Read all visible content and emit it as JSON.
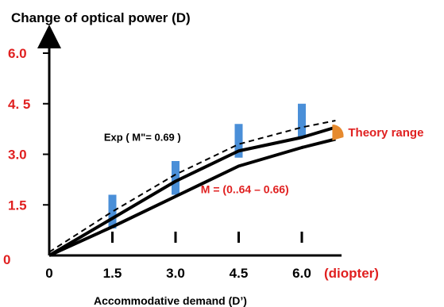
{
  "chart_data": {
    "type": "line",
    "title": "Change of optical power (D)",
    "xlabel": "Accommodative demand (D’)",
    "x_unit_label": "(diopter)",
    "ylabel": "",
    "x_ticks": [
      "0",
      "1.5",
      "3.0",
      "4.5",
      "6.0"
    ],
    "y_ticks": [
      "6.0",
      "4. 5",
      "3.0",
      "1.5"
    ],
    "origin_label": "0",
    "xlim": [
      0,
      7.2
    ],
    "ylim": [
      0,
      6.3
    ],
    "series": [
      {
        "name": "Exp ( M\"= 0.69 )",
        "style": "dashed",
        "x": [
          0,
          1.5,
          3.0,
          4.5,
          6.0,
          6.8
        ],
        "y": [
          0.1,
          1.3,
          2.4,
          3.3,
          3.8,
          4.0
        ]
      },
      {
        "name": "",
        "style": "solid",
        "x": [
          0,
          1.5,
          3.0,
          4.5,
          6.0,
          6.8
        ],
        "y": [
          0,
          1.1,
          2.2,
          3.1,
          3.5,
          3.8
        ]
      },
      {
        "name": "M = (0..64 – 0.66)",
        "style": "solid",
        "x": [
          0,
          1.5,
          3.0,
          4.5,
          6.0,
          6.8
        ],
        "y": [
          0,
          0.85,
          1.75,
          2.65,
          3.2,
          3.45
        ]
      }
    ],
    "error_bars": [
      {
        "x": 1.5,
        "y_low": 0.8,
        "y_high": 1.8
      },
      {
        "x": 3.0,
        "y_low": 1.8,
        "y_high": 2.8
      },
      {
        "x": 4.5,
        "y_low": 2.9,
        "y_high": 3.9
      },
      {
        "x": 6.0,
        "y_low": 3.5,
        "y_high": 4.5
      }
    ],
    "annotations": [
      {
        "text": "Theory range",
        "x": 6.8,
        "y": 3.6,
        "color": "#e02020"
      }
    ],
    "colors": {
      "axis": "#000000",
      "tick_labels": "#e02020",
      "error_bar": "#4a8fd8",
      "theory_wedge": "#e68a2e",
      "annotation_red": "#e02020"
    },
    "grid": false
  }
}
